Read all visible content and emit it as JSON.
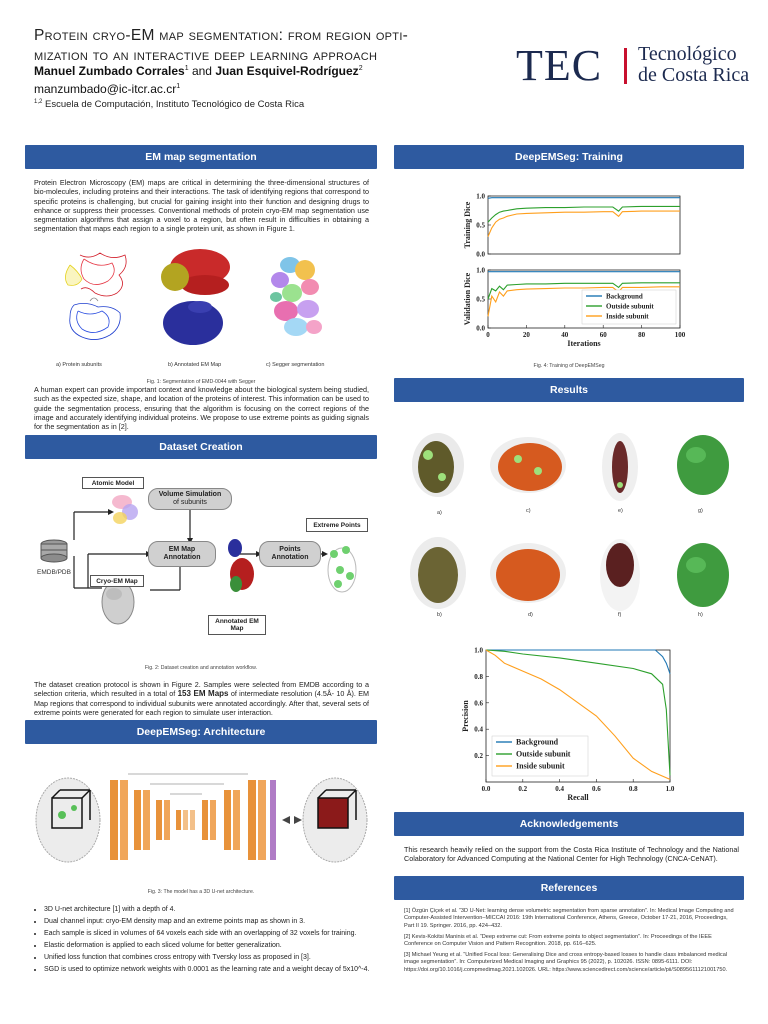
{
  "header": {
    "title_line1": "Protein cryo-EM map segmentation: from region opti-",
    "title_line2": "mization to an interactive deep learning approach",
    "author1": "Manuel Zumbado Corrales",
    "author1_sup": "1",
    "and": "and",
    "author2": "Juan Esquivel-Rodríguez",
    "author2_sup": "2",
    "email": "manzumbado@ic-itcr.ac.cr",
    "email_sup": "1",
    "affil_sup": "1,2",
    "affiliation": "Escuela de Computación, Instituto Tecnológico de Costa Rica",
    "logo_mark": "TEC",
    "logo_name_line1": "Tecnológico",
    "logo_name_line2": "de Costa Rica"
  },
  "sections": {
    "em_seg": "EM map segmentation",
    "dataset": "Dataset Creation",
    "arch": "DeepEMSeg: Architecture",
    "training": "DeepEMSeg: Training",
    "results": "Results",
    "ack": "Acknowledgements",
    "refs": "References"
  },
  "em_seg": {
    "para1": "Protein Electron Microscopy (EM) maps are critical in determining the three-dimensional structures of bio-molecules, including proteins and their interactions. The task of identifying regions that correspond to specific proteins is challenging, but crucial for gaining insight into their function and designing drugs to enhance or suppress their processes. Conventional methods of protein cryo-EM map segmentation use segmentation algorithms that assign a voxel to a region, but often result in difficulties in obtaining a segmentation that maps each region to a single protein unit, as shown in Figure 1.",
    "sub_a": "a)       Protein subunits",
    "sub_b": "b) Annotated EM Map",
    "sub_c": "c) Segger segmentation",
    "fig1_caption": "Fig. 1: Segmentation of EMD-0044 with Segger",
    "para2": "A human expert can provide important context and knowledge about the biological system being studied, such as the expected size, shape, and location of the proteins of interest. This information can be used to guide the segmentation process, ensuring that the algorithm is focusing on the correct regions of the image and accurately identifying individual proteins. We propose to use extreme points as guiding signals for the segmentation as in [2]."
  },
  "dataset": {
    "atomic_model": "Atomic Model",
    "volume_sim": "Volume Simulation",
    "volume_sim2": "of subunits",
    "em_map_annot": "EM Map",
    "em_map_annot2": "Annotation",
    "points_annot": "Points",
    "points_annot2": "Annotation",
    "extreme_points": "Extreme Points",
    "emdb": "EMDB/PDB",
    "cryo_map": "Cryo-EM Map",
    "annotated_map": "Annotated EM",
    "annotated_map2": "Map",
    "fig2_caption": "Fig. 2: Dataset creation and annotation workflow.",
    "para_pre": "The dataset creation protocol is shown in Figure 2. Samples were selected from EMDB according to a selection criteria, which resulted in a total of ",
    "para_bold": "153 EM Maps",
    "para_post": " of intermediate resolution (4.5Å- 10 Å). EM Map regions that correspond to individual subunits were annotated accordingly. After that, several sets of extreme points were generated for each region to simulate user interaction."
  },
  "arch": {
    "fig3_caption": "Fig. 3: The model has a 3D U-net architecture.",
    "bullets": [
      "3D U-net architecture [1] with a depth of 4.",
      "Dual channel input: cryo-EM density map and an extreme points map as shown in 3.",
      "Each sample is sliced in volumes of 64 voxels each side with an overlapping of 32 voxels for training.",
      "Elastic deformation is applied to each sliced volume for better generalization.",
      "Unified loss function that combines cross entropy with Tversky loss as proposed in [3].",
      "SGD is used to optimize network weights with 0.0001 as the learning rate and a weight decay of 5x10^-4."
    ]
  },
  "training": {
    "fig4_caption": "Fig. 4: Training of DeepEMSeg"
  },
  "results": {
    "labels": [
      "a)",
      "c)",
      "e)",
      "g)",
      "b)",
      "d)",
      "f)",
      "h)"
    ]
  },
  "ack": {
    "text": "This research heavily relied on the support from the Costa Rica Institute of Technology and the National Colaboratory for Advanced Computing at the National Center for High Technology (CNCA-CeNAT)."
  },
  "refs": {
    "items": [
      "[1]   Özgün Çiçek et al. “3D U-Net: learning dense volumetric segmentation from sparse annotation”. In: Medical Image Computing and Computer-Assisted Intervention–MICCAI 2016: 19th International Conference, Athens, Greece, October 17-21, 2016, Proceedings, Part II 19. Springer. 2016, pp. 424–432.",
      "[2]   Kevis-Kokitsi Maninis et al. “Deep extreme cut: From extreme points to object segmentation”. In: Proceedings of the IEEE Conference on Computer Vision and Pattern Recognition. 2018, pp. 616–625.",
      "[3]   Michael Yeung et al. “Unified Focal loss: Generalising Dice and cross entropy-based losses to handle class imbalanced medical image segmentation”. In: Computerized Medical Imaging and Graphics 95 (2022), p. 102026. ISSN: 0895-6111. DOI: https://doi.org/10.1016/j.compmedimag.2021.102026. URL: https://www.sciencedirect.com/science/article/pii/S0895611121001750."
    ]
  },
  "chart_data": [
    {
      "type": "line",
      "ylabel": "Training Dice",
      "xlim": [
        0,
        100
      ],
      "ylim": [
        0.0,
        1.0
      ],
      "yticks": [
        "0.0",
        "0.5",
        "1.0"
      ],
      "x": [
        0,
        2,
        4,
        6,
        8,
        10,
        15,
        20,
        30,
        40,
        50,
        60,
        65,
        68,
        70,
        80,
        90,
        100
      ],
      "series": [
        {
          "name": "Background",
          "color": "#1f77b4",
          "values": [
            0.96,
            0.97,
            0.97,
            0.97,
            0.97,
            0.97,
            0.97,
            0.97,
            0.97,
            0.97,
            0.97,
            0.97,
            0.97,
            0.97,
            0.97,
            0.97,
            0.97,
            0.97
          ]
        },
        {
          "name": "Outside subunit",
          "color": "#2ca02c",
          "values": [
            0.55,
            0.62,
            0.68,
            0.72,
            0.74,
            0.75,
            0.78,
            0.79,
            0.8,
            0.8,
            0.81,
            0.81,
            0.81,
            0.74,
            0.81,
            0.82,
            0.82,
            0.82
          ]
        },
        {
          "name": "Inside subunit",
          "color": "#ff9f1c",
          "values": [
            0.3,
            0.45,
            0.55,
            0.6,
            0.62,
            0.65,
            0.69,
            0.7,
            0.71,
            0.72,
            0.72,
            0.73,
            0.73,
            0.65,
            0.73,
            0.74,
            0.74,
            0.74
          ]
        }
      ]
    },
    {
      "type": "line",
      "ylabel": "Validation Dice",
      "xlabel": "Iterations",
      "xlim": [
        0,
        100
      ],
      "ylim": [
        0.0,
        1.0
      ],
      "xticks": [
        "0",
        "20",
        "40",
        "60",
        "80",
        "100"
      ],
      "yticks": [
        "0.0",
        "0.5",
        "1.0"
      ],
      "legend": "bottom-right",
      "x": [
        0,
        2,
        4,
        6,
        8,
        10,
        15,
        20,
        30,
        40,
        50,
        60,
        65,
        68,
        70,
        80,
        90,
        100
      ],
      "series": [
        {
          "name": "Background",
          "color": "#1f77b4",
          "values": [
            0.97,
            0.97,
            0.97,
            0.97,
            0.97,
            0.97,
            0.97,
            0.97,
            0.97,
            0.97,
            0.97,
            0.97,
            0.97,
            0.97,
            0.97,
            0.97,
            0.97,
            0.97
          ]
        },
        {
          "name": "Outside subunit",
          "color": "#2ca02c",
          "values": [
            0.5,
            0.68,
            0.64,
            0.72,
            0.66,
            0.74,
            0.75,
            0.76,
            0.76,
            0.77,
            0.77,
            0.77,
            0.77,
            0.7,
            0.77,
            0.78,
            0.78,
            0.78
          ]
        },
        {
          "name": "Inside subunit",
          "color": "#ff9f1c",
          "values": [
            0.2,
            0.55,
            0.45,
            0.62,
            0.55,
            0.64,
            0.66,
            0.67,
            0.68,
            0.69,
            0.69,
            0.7,
            0.7,
            0.62,
            0.7,
            0.7,
            0.71,
            0.71
          ]
        }
      ]
    },
    {
      "type": "line",
      "xlabel": "Recall",
      "ylabel": "Precision",
      "xlim": [
        0.0,
        1.0
      ],
      "ylim": [
        0.0,
        1.0
      ],
      "xticks": [
        "0.0",
        "0.2",
        "0.4",
        "0.6",
        "0.8",
        "1.0"
      ],
      "yticks": [
        "0.2",
        "0.4",
        "0.6",
        "0.8",
        "1.0"
      ],
      "legend": "bottom-left",
      "series": [
        {
          "name": "Background",
          "color": "#1f77b4",
          "x": [
            0.0,
            0.2,
            0.4,
            0.6,
            0.8,
            0.92,
            0.96,
            0.98,
            0.99,
            1.0
          ],
          "values": [
            1.0,
            1.0,
            1.0,
            1.0,
            1.0,
            1.0,
            0.95,
            0.9,
            0.86,
            0.82
          ]
        },
        {
          "name": "Outside subunit",
          "color": "#2ca02c",
          "x": [
            0.0,
            0.1,
            0.2,
            0.4,
            0.6,
            0.8,
            0.9,
            0.96,
            0.98,
            1.0
          ],
          "values": [
            1.0,
            0.99,
            0.97,
            0.94,
            0.9,
            0.86,
            0.82,
            0.74,
            0.55,
            0.05
          ]
        },
        {
          "name": "Inside subunit",
          "color": "#ff9f1c",
          "x": [
            0.0,
            0.05,
            0.1,
            0.2,
            0.3,
            0.4,
            0.5,
            0.6,
            0.7,
            0.8,
            0.9,
            1.0
          ],
          "values": [
            1.0,
            0.96,
            0.9,
            0.84,
            0.78,
            0.7,
            0.6,
            0.5,
            0.35,
            0.18,
            0.08,
            0.02
          ]
        }
      ]
    }
  ]
}
